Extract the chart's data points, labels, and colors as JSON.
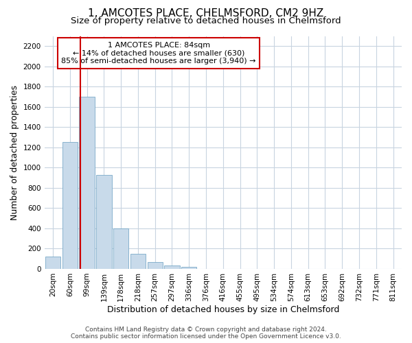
{
  "title_line1": "1, AMCOTES PLACE, CHELMSFORD, CM2 9HZ",
  "title_line2": "Size of property relative to detached houses in Chelmsford",
  "xlabel": "Distribution of detached houses by size in Chelmsford",
  "ylabel": "Number of detached properties",
  "categories": [
    "20sqm",
    "60sqm",
    "99sqm",
    "139sqm",
    "178sqm",
    "218sqm",
    "257sqm",
    "297sqm",
    "336sqm",
    "376sqm",
    "416sqm",
    "455sqm",
    "495sqm",
    "534sqm",
    "574sqm",
    "613sqm",
    "653sqm",
    "692sqm",
    "732sqm",
    "771sqm",
    "811sqm"
  ],
  "values": [
    120,
    1250,
    1700,
    930,
    400,
    150,
    65,
    35,
    20,
    0,
    0,
    0,
    0,
    0,
    0,
    0,
    0,
    0,
    0,
    0,
    0
  ],
  "bar_color": "#c8daea",
  "bar_edge_color": "#7aaac8",
  "vline_color": "#cc0000",
  "annotation_line1": "1 AMCOTES PLACE: 84sqm",
  "annotation_line2": "← 14% of detached houses are smaller (630)",
  "annotation_line3": "85% of semi-detached houses are larger (3,940) →",
  "annotation_box_facecolor": "#ffffff",
  "annotation_box_edgecolor": "#cc0000",
  "ylim": [
    0,
    2300
  ],
  "yticks": [
    0,
    200,
    400,
    600,
    800,
    1000,
    1200,
    1400,
    1600,
    1800,
    2000,
    2200
  ],
  "footer_line1": "Contains HM Land Registry data © Crown copyright and database right 2024.",
  "footer_line2": "Contains public sector information licensed under the Open Government Licence v3.0.",
  "bg_color": "#ffffff",
  "plot_bg_color": "#ffffff",
  "grid_color": "#c8d4e0",
  "title_fontsize": 11,
  "subtitle_fontsize": 9.5,
  "axis_label_fontsize": 9,
  "tick_fontsize": 7.5,
  "annotation_fontsize": 8,
  "footer_fontsize": 6.5
}
